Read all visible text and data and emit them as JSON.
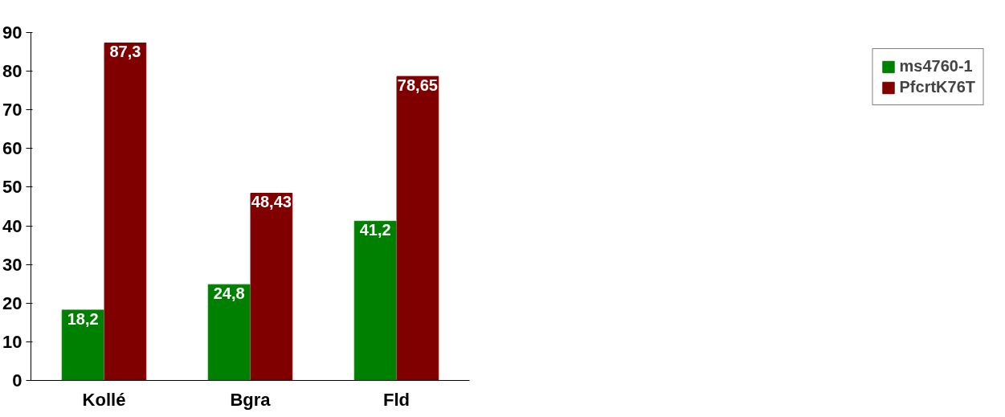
{
  "chart_data": {
    "type": "bar",
    "categories": [
      "Kollé",
      "Bgra",
      "Fld"
    ],
    "series": [
      {
        "name": "ms4760-1",
        "color": "#008000",
        "values": [
          18.2,
          24.8,
          41.2
        ],
        "value_labels": [
          "18,2",
          "24,8",
          "41,2"
        ]
      },
      {
        "name": "PfcrtK76T",
        "color": "#800000",
        "values": [
          87.3,
          48.43,
          78.65
        ],
        "value_labels": [
          "87,3",
          "48,43",
          "78,65"
        ]
      }
    ],
    "ylim": [
      0,
      90
    ],
    "yticks": [
      0,
      10,
      20,
      30,
      40,
      50,
      60,
      70,
      80,
      90
    ],
    "grid": false,
    "legend": "right"
  }
}
